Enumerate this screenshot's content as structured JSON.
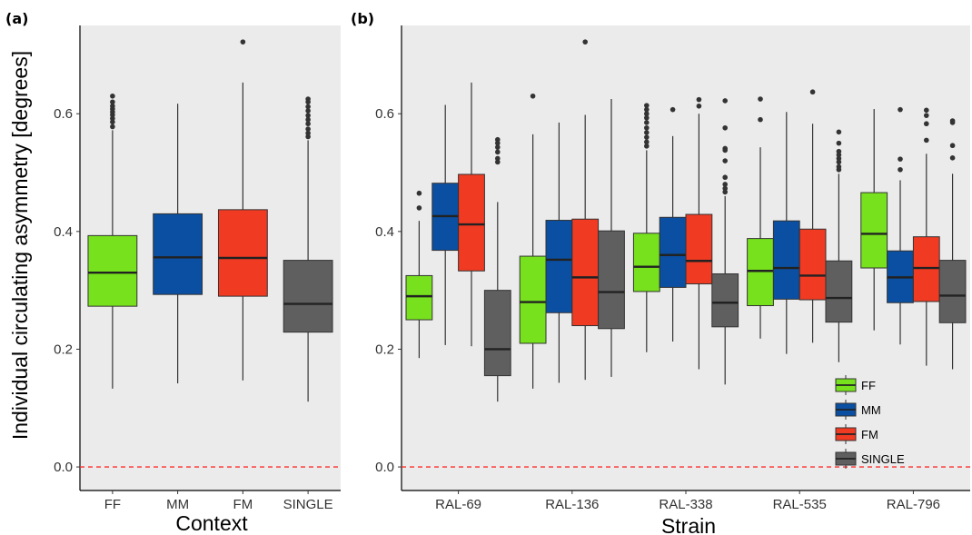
{
  "figure": {
    "y_title": "Individual circulating asymmetry [degrees]"
  },
  "colors": {
    "FF": "#77e11d",
    "MM": "#0a4fa1",
    "FM": "#f03a22",
    "SINGLE": "#5f5f5f",
    "panel_bg": "#ebebeb",
    "ref_line": "#ff2a2a",
    "median_line": "#222222",
    "outlier": "#333333"
  },
  "legend": {
    "entries": [
      "FF",
      "MM",
      "FM",
      "SINGLE"
    ]
  },
  "chart_data": [
    {
      "type": "box",
      "panel_label": "(a)",
      "xlabel": "Context",
      "ylabel": "Individual circulating asymmetry [degrees]",
      "categories": [
        "FF",
        "MM",
        "FM",
        "SINGLE"
      ],
      "ylim": [
        -0.04,
        0.75
      ],
      "yticks": [
        0.0,
        0.2,
        0.4,
        0.6
      ],
      "ytick_labels": [
        "0.0",
        "0.2",
        "0.4",
        "0.6"
      ],
      "reference_line": 0.0,
      "grid": false,
      "boxes": [
        {
          "group": "FF",
          "min": 0.133,
          "q1": 0.273,
          "median": 0.33,
          "q3": 0.393,
          "max": 0.572,
          "outliers": [
            0.578,
            0.586,
            0.592,
            0.598,
            0.603,
            0.608,
            0.613,
            0.62,
            0.63
          ]
        },
        {
          "group": "MM",
          "min": 0.142,
          "q1": 0.293,
          "median": 0.356,
          "q3": 0.43,
          "max": 0.617,
          "outliers": []
        },
        {
          "group": "FM",
          "min": 0.147,
          "q1": 0.29,
          "median": 0.355,
          "q3": 0.437,
          "max": 0.653,
          "outliers": [
            0.722
          ]
        },
        {
          "group": "SINGLE",
          "min": 0.111,
          "q1": 0.229,
          "median": 0.277,
          "q3": 0.351,
          "max": 0.555,
          "outliers": [
            0.561,
            0.567,
            0.574,
            0.583,
            0.59,
            0.597,
            0.605,
            0.612,
            0.62,
            0.625
          ]
        }
      ]
    },
    {
      "type": "box",
      "panel_label": "(b)",
      "xlabel": "Strain",
      "ylabel": "",
      "categories": [
        "RAL-69",
        "RAL-136",
        "RAL-338",
        "RAL-535",
        "RAL-796"
      ],
      "groups": [
        "FF",
        "MM",
        "FM",
        "SINGLE"
      ],
      "ylim": [
        -0.04,
        0.75
      ],
      "yticks": [
        0.0,
        0.2,
        0.4,
        0.6
      ],
      "ytick_labels": [
        "0.0",
        "0.2",
        "0.4",
        "0.6"
      ],
      "reference_line": 0.0,
      "grid": false,
      "legend_position": "bottom-right",
      "series": [
        {
          "name": "FF",
          "boxes": [
            {
              "min": 0.185,
              "q1": 0.25,
              "median": 0.29,
              "q3": 0.325,
              "max": 0.418,
              "outliers": [
                0.44,
                0.465
              ]
            },
            {
              "min": 0.133,
              "q1": 0.21,
              "median": 0.28,
              "q3": 0.358,
              "max": 0.565,
              "outliers": [
                0.63
              ]
            },
            {
              "min": 0.195,
              "q1": 0.298,
              "median": 0.34,
              "q3": 0.397,
              "max": 0.538,
              "outliers": [
                0.545,
                0.552,
                0.56,
                0.568,
                0.576,
                0.585,
                0.593,
                0.6,
                0.607,
                0.614
              ]
            },
            {
              "min": 0.218,
              "q1": 0.274,
              "median": 0.333,
              "q3": 0.388,
              "max": 0.543,
              "outliers": [
                0.59,
                0.625
              ]
            },
            {
              "min": 0.232,
              "q1": 0.338,
              "median": 0.396,
              "q3": 0.466,
              "max": 0.608,
              "outliers": []
            }
          ]
        },
        {
          "name": "MM",
          "boxes": [
            {
              "min": 0.207,
              "q1": 0.368,
              "median": 0.426,
              "q3": 0.482,
              "max": 0.615,
              "outliers": []
            },
            {
              "min": 0.143,
              "q1": 0.262,
              "median": 0.352,
              "q3": 0.419,
              "max": 0.585,
              "outliers": []
            },
            {
              "min": 0.213,
              "q1": 0.305,
              "median": 0.36,
              "q3": 0.424,
              "max": 0.562,
              "outliers": [
                0.607
              ]
            },
            {
              "min": 0.192,
              "q1": 0.285,
              "median": 0.338,
              "q3": 0.418,
              "max": 0.603,
              "outliers": []
            },
            {
              "min": 0.208,
              "q1": 0.279,
              "median": 0.322,
              "q3": 0.367,
              "max": 0.487,
              "outliers": [
                0.505,
                0.523,
                0.607
              ]
            }
          ]
        },
        {
          "name": "FM",
          "boxes": [
            {
              "min": 0.205,
              "q1": 0.333,
              "median": 0.412,
              "q3": 0.497,
              "max": 0.653,
              "outliers": []
            },
            {
              "min": 0.148,
              "q1": 0.24,
              "median": 0.322,
              "q3": 0.421,
              "max": 0.598,
              "outliers": [
                0.722
              ]
            },
            {
              "min": 0.166,
              "q1": 0.311,
              "median": 0.35,
              "q3": 0.429,
              "max": 0.6,
              "outliers": [
                0.613,
                0.624
              ]
            },
            {
              "min": 0.211,
              "q1": 0.284,
              "median": 0.325,
              "q3": 0.404,
              "max": 0.583,
              "outliers": [
                0.637
              ]
            },
            {
              "min": 0.172,
              "q1": 0.281,
              "median": 0.338,
              "q3": 0.391,
              "max": 0.532,
              "outliers": [
                0.555,
                0.583,
                0.597,
                0.606
              ]
            }
          ]
        },
        {
          "name": "SINGLE",
          "boxes": [
            {
              "min": 0.111,
              "q1": 0.155,
              "median": 0.2,
              "q3": 0.3,
              "max": 0.45,
              "outliers": [
                0.518,
                0.524,
                0.535,
                0.543,
                0.55,
                0.556
              ]
            },
            {
              "min": 0.153,
              "q1": 0.235,
              "median": 0.297,
              "q3": 0.401,
              "max": 0.625,
              "outliers": []
            },
            {
              "min": 0.14,
              "q1": 0.238,
              "median": 0.279,
              "q3": 0.328,
              "max": 0.46,
              "outliers": [
                0.467,
                0.473,
                0.48,
                0.492,
                0.52,
                0.538,
                0.541,
                0.576,
                0.622
              ]
            },
            {
              "min": 0.178,
              "q1": 0.246,
              "median": 0.287,
              "q3": 0.35,
              "max": 0.498,
              "outliers": [
                0.505,
                0.51,
                0.518,
                0.524,
                0.53,
                0.536,
                0.55,
                0.569
              ]
            },
            {
              "min": 0.166,
              "q1": 0.245,
              "median": 0.291,
              "q3": 0.351,
              "max": 0.498,
              "outliers": [
                0.525,
                0.546,
                0.585,
                0.588
              ]
            }
          ]
        }
      ]
    }
  ]
}
